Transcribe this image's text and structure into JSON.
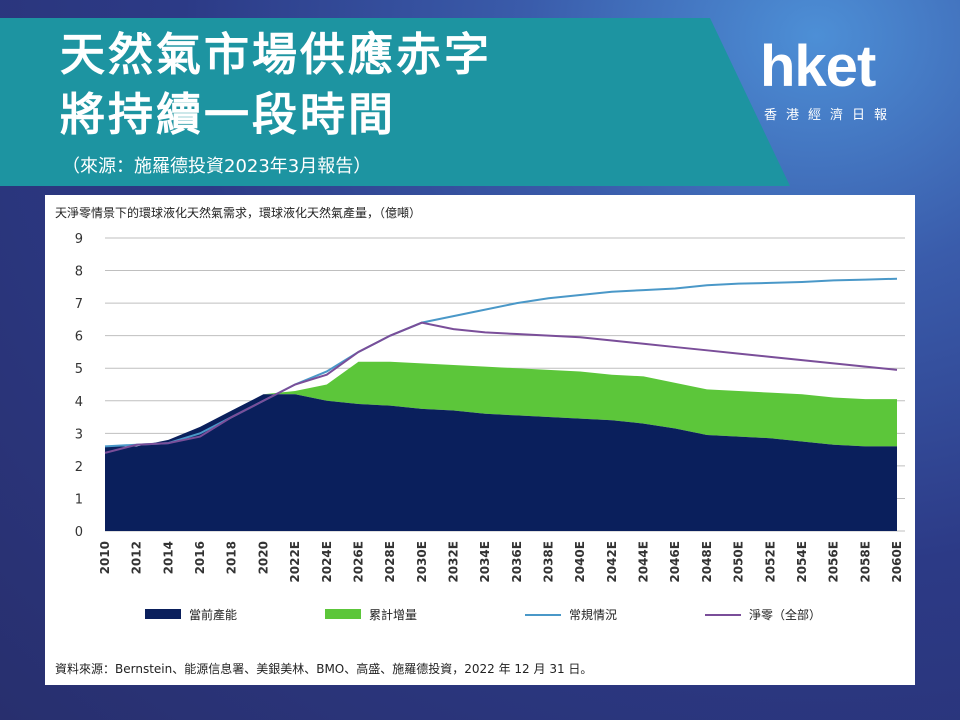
{
  "header": {
    "title_line1": "天然氣市場供應赤字",
    "title_line2": "將持續一段時間",
    "subtitle": "（來源：施羅德投資2023年3月報告）"
  },
  "logo": {
    "main": "hket",
    "sub": "香港經濟日報"
  },
  "colors": {
    "banner": "#1d94a1",
    "capacity": "#0a1f5c",
    "cumulative": "#5cc63a",
    "conventional": "#4a98c8",
    "net_zero": "#7a4e99"
  },
  "chart_data": {
    "type": "area",
    "title": "天淨零情景下的環球液化天然氣需求，環球液化天然氣產量，（億噸）",
    "ylim": [
      0,
      9
    ],
    "yticks": [
      "9",
      "8",
      "7",
      "6",
      "5",
      "4",
      "3",
      "2",
      "1",
      "0"
    ],
    "x": [
      2010,
      2012,
      2014,
      2016,
      2018,
      2020,
      2022,
      2024,
      2026,
      2028,
      2030,
      2032,
      2034,
      2036,
      2038,
      2040,
      2042,
      2044,
      2046,
      2048,
      2050,
      2052,
      2054,
      2056,
      2058,
      2060
    ],
    "xtick_labels": [
      "2010",
      "2012",
      "2014",
      "2016",
      "2018",
      "2020",
      "2022E",
      "2024E",
      "2026E",
      "2028E",
      "2030E",
      "2032E",
      "2034E",
      "2036E",
      "2038E",
      "2040E",
      "2042E",
      "2044E",
      "2046E",
      "2048E",
      "2050E",
      "2052E",
      "2054E",
      "2056E",
      "2058E",
      "2060E"
    ],
    "series": [
      {
        "name": "當前產能",
        "kind": "area",
        "values": [
          2.6,
          2.6,
          2.8,
          3.2,
          3.7,
          4.2,
          4.2,
          4.0,
          3.9,
          3.85,
          3.75,
          3.7,
          3.6,
          3.55,
          3.5,
          3.45,
          3.4,
          3.3,
          3.15,
          2.95,
          2.9,
          2.85,
          2.75,
          2.65,
          2.6,
          2.6
        ]
      },
      {
        "name": "累計增量",
        "kind": "area",
        "values": [
          2.6,
          2.6,
          2.8,
          3.2,
          3.7,
          4.2,
          4.3,
          4.5,
          5.2,
          5.2,
          5.15,
          5.1,
          5.05,
          5.0,
          4.95,
          4.9,
          4.8,
          4.75,
          4.55,
          4.35,
          4.3,
          4.25,
          4.2,
          4.1,
          4.05,
          4.05
        ]
      },
      {
        "name": "常規情況",
        "kind": "line",
        "values": [
          2.6,
          2.65,
          2.7,
          3.0,
          3.5,
          4.0,
          4.5,
          4.9,
          5.5,
          6.0,
          6.4,
          6.6,
          6.8,
          7.0,
          7.15,
          7.25,
          7.35,
          7.4,
          7.45,
          7.55,
          7.6,
          7.62,
          7.65,
          7.7,
          7.72,
          7.75
        ]
      },
      {
        "name": "淨零（全部）",
        "kind": "line",
        "values": [
          2.4,
          2.65,
          2.7,
          2.9,
          3.5,
          4.0,
          4.5,
          4.8,
          5.5,
          6.0,
          6.4,
          6.2,
          6.1,
          6.05,
          6.0,
          5.95,
          5.85,
          5.75,
          5.65,
          5.55,
          5.45,
          5.35,
          5.25,
          5.15,
          5.05,
          4.95
        ]
      }
    ],
    "legend": [
      "當前產能",
      "累計增量",
      "常規情況",
      "淨零（全部）"
    ],
    "source": "資料來源：Bernstein、能源信息署、美銀美林、BMO、高盛、施羅德投資，2022 年 12 月 31 日。"
  }
}
